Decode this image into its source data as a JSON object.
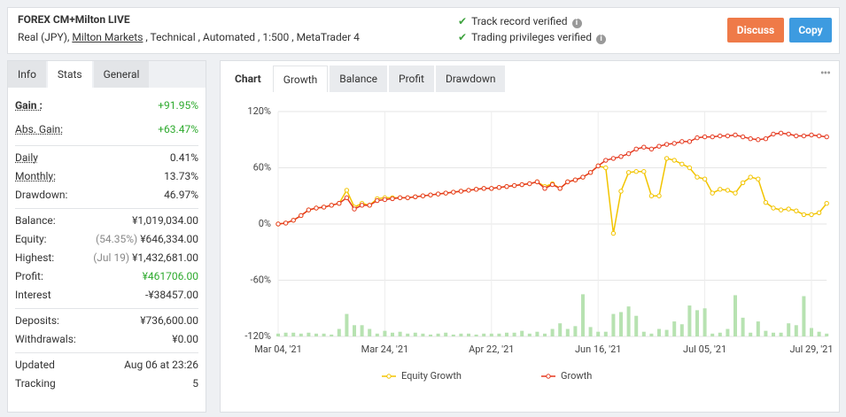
{
  "header": {
    "title": "FOREX CM+Milton LIVE",
    "account": "Real (JPY),",
    "broker": "Milton Markets",
    "details": ", Technical , Automated , 1:500 , MetaTrader 4",
    "verified": [
      "Track record verified",
      "Trading privileges verified"
    ],
    "buttons": [
      "Discuss",
      "Copy"
    ]
  },
  "stats_tabs": [
    "Info",
    "Stats",
    "General"
  ],
  "stats": [
    [
      {
        "label": "Gain :",
        "value": "+91.95%"
      },
      {
        "label": "Abs. Gain:",
        "value": "+63.47%"
      }
    ],
    [
      {
        "label": "Daily",
        "value": "0.41%"
      },
      {
        "label": "Monthly:",
        "value": "13.73%"
      },
      {
        "label": "Drawdown:",
        "value": "46.97%"
      }
    ],
    [
      {
        "label": "Balance:",
        "value": "¥1,019,034.00"
      },
      {
        "label": "Equity:",
        "note": "(54.35%)",
        "value": "¥646,334.00"
      },
      {
        "label": "Highest:",
        "note": "(Jul 19)",
        "value": "¥1,432,681.00"
      },
      {
        "label": "Profit:",
        "value": "¥461706.00"
      },
      {
        "label": "Interest",
        "value": "-¥38457.00"
      }
    ],
    [
      {
        "label": "Deposits:",
        "value": "¥736,600.00"
      },
      {
        "label": "Withdrawals:",
        "value": "¥0.00"
      }
    ],
    [
      {
        "label": "Updated",
        "value": "Aug 06 at 23:26"
      },
      {
        "label": "Tracking",
        "value": "5"
      }
    ]
  ],
  "chart_tabs": [
    "Chart",
    "Growth",
    "Balance",
    "Profit",
    "Drawdown"
  ],
  "chart_data": {
    "type": "line",
    "categories": [
      "Mar 04, '21",
      null,
      null,
      null,
      null,
      null,
      null,
      null,
      null,
      null,
      null,
      null,
      null,
      null,
      "Mar 24, '21",
      null,
      null,
      null,
      null,
      null,
      null,
      null,
      null,
      null,
      null,
      null,
      null,
      null,
      "Apr 22, '21",
      null,
      null,
      null,
      null,
      null,
      null,
      null,
      null,
      null,
      null,
      null,
      null,
      null,
      "Jun 16, '21",
      null,
      null,
      null,
      null,
      null,
      null,
      null,
      null,
      null,
      null,
      null,
      null,
      null,
      "Jul 05, '21",
      null,
      null,
      null,
      null,
      null,
      null,
      null,
      null,
      null,
      null,
      null,
      null,
      null,
      "Jul 29, '21",
      null,
      null
    ],
    "ylim": [
      -120,
      120
    ],
    "yticks": [
      {
        "value": -120,
        "label": "-120%"
      },
      {
        "value": -60,
        "label": "-60%"
      },
      {
        "value": 0,
        "label": "0%"
      },
      {
        "value": 60,
        "label": "60%"
      },
      {
        "value": 120,
        "label": "120%"
      }
    ],
    "grid": true,
    "series": [
      {
        "name": "Equity Growth",
        "color": "#f2c400",
        "values": [
          0,
          1,
          4,
          9,
          15,
          17,
          18,
          20,
          22,
          36,
          18,
          22,
          20,
          27,
          28,
          28,
          28,
          28,
          29,
          30,
          31,
          32,
          33,
          34,
          35,
          36,
          37,
          38,
          38,
          39,
          40,
          41,
          42,
          43,
          45,
          40,
          43,
          38,
          45,
          47,
          50,
          55,
          62,
          60,
          -10,
          35,
          55,
          56,
          56,
          30,
          30,
          70,
          68,
          64,
          60,
          50,
          48,
          33,
          37,
          36,
          33,
          44,
          50,
          48,
          23,
          17,
          15,
          16,
          14,
          10,
          10,
          12,
          22
        ]
      },
      {
        "name": "Growth",
        "color": "#e5391f",
        "values": [
          0,
          1,
          4,
          9,
          15,
          17,
          18,
          20,
          22,
          28,
          16,
          20,
          20,
          25,
          26,
          27,
          28,
          28,
          29,
          30,
          31,
          32,
          33,
          34,
          35,
          36,
          37,
          38,
          38,
          39,
          40,
          41,
          42,
          43,
          45,
          38,
          42,
          38,
          45,
          47,
          50,
          55,
          62,
          68,
          70,
          72,
          75,
          80,
          82,
          80,
          83,
          85,
          86,
          88,
          88,
          92,
          93,
          93,
          94,
          94,
          95,
          93,
          91,
          90,
          91,
          96,
          97,
          96,
          94,
          94,
          95,
          94,
          93
        ]
      }
    ],
    "bars": {
      "color": "#b7e2b1",
      "values": [
        -117,
        -116,
        -116,
        -117,
        -116,
        -117,
        -117,
        -118,
        -112,
        -96,
        -108,
        -108,
        -112,
        -117,
        -114,
        -116,
        -115,
        -117,
        -116,
        -117,
        -118,
        -117,
        -116,
        -118,
        -117,
        -117,
        -118,
        -117,
        -117,
        -117,
        -116,
        -116,
        -114,
        -117,
        -115,
        -117,
        -112,
        -106,
        -112,
        -109,
        -75,
        -110,
        -115,
        -115,
        -96,
        -94,
        -88,
        -98,
        -115,
        -117,
        -112,
        -113,
        -104,
        -107,
        -87,
        -92,
        -90,
        -117,
        -116,
        -112,
        -76,
        -100,
        -116,
        -104,
        -114,
        -116,
        -116,
        -106,
        -108,
        -77,
        -111,
        -115,
        -117
      ]
    }
  }
}
